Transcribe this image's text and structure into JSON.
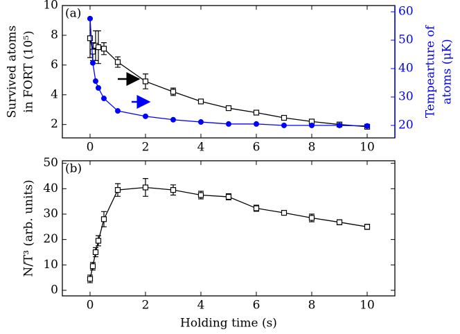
{
  "chart_data": [
    {
      "type": "line",
      "annotation": "(a)",
      "ylabel_lines": [
        "Survived atoms",
        "in FORT (10⁵)"
      ],
      "y2label_lines": [
        "Tempearture of",
        "atoms (μK)"
      ],
      "x": [
        0,
        0.1,
        0.2,
        0.3,
        0.5,
        1,
        2,
        3,
        4,
        5,
        6,
        7,
        8,
        9,
        10
      ],
      "xlim": [
        -1,
        11
      ],
      "xticks": [
        0,
        2,
        4,
        6,
        8,
        10
      ],
      "ylim": [
        1.1,
        10
      ],
      "yticks": [
        2,
        4,
        6,
        8,
        10
      ],
      "y2lim": [
        15.6,
        62.2
      ],
      "y2ticks": [
        20,
        30,
        40,
        50,
        60
      ],
      "y2color": "#0000ff",
      "series": [
        {
          "color": "#000000",
          "marker": "open-square",
          "values": [
            7.8,
            6.9,
            7.3,
            7.2,
            7.1,
            6.2,
            4.9,
            4.2,
            3.55,
            3.1,
            2.8,
            2.45,
            2.2,
            2.0,
            1.85
          ],
          "errors": [
            1.3,
            0.6,
            1.0,
            1.1,
            0.4,
            0.35,
            0.5,
            0.25,
            0.15,
            0.1,
            0.1,
            0.15,
            0.15,
            0.1,
            0.1
          ]
        },
        {
          "color": "#0000ff",
          "marker": "filled-circle",
          "axis": "y2",
          "values": [
            57.6,
            42,
            35.6,
            33.2,
            29.5,
            25.1,
            23.2,
            22,
            21.2,
            20.5,
            20.5,
            20,
            20,
            20,
            19.8
          ]
        }
      ]
    },
    {
      "type": "line",
      "annotation": "(b)",
      "ylabel_lines": [
        "N/T³ (arb. units)"
      ],
      "xlabel": "Holding time (s)",
      "x": [
        0,
        0.1,
        0.2,
        0.3,
        0.5,
        1,
        2,
        3,
        4,
        5,
        6,
        7,
        8,
        9,
        10
      ],
      "xlim": [
        -1,
        11
      ],
      "xticks": [
        0,
        2,
        4,
        6,
        8,
        10
      ],
      "ylim": [
        -2.2,
        51
      ],
      "yticks": [
        0,
        10,
        20,
        30,
        40,
        50
      ],
      "series": [
        {
          "color": "#000000",
          "marker": "open-square",
          "values": [
            4.5,
            9.5,
            15,
            19.5,
            28,
            39.5,
            40.5,
            39.5,
            37.5,
            36.8,
            32.3,
            30.5,
            28.5,
            26.8,
            25
          ],
          "errors": [
            1.5,
            1.5,
            1.8,
            2,
            3,
            2.5,
            3.5,
            2,
            1.5,
            1.2,
            1.2,
            0.8,
            1.5,
            1,
            1
          ]
        }
      ]
    }
  ]
}
